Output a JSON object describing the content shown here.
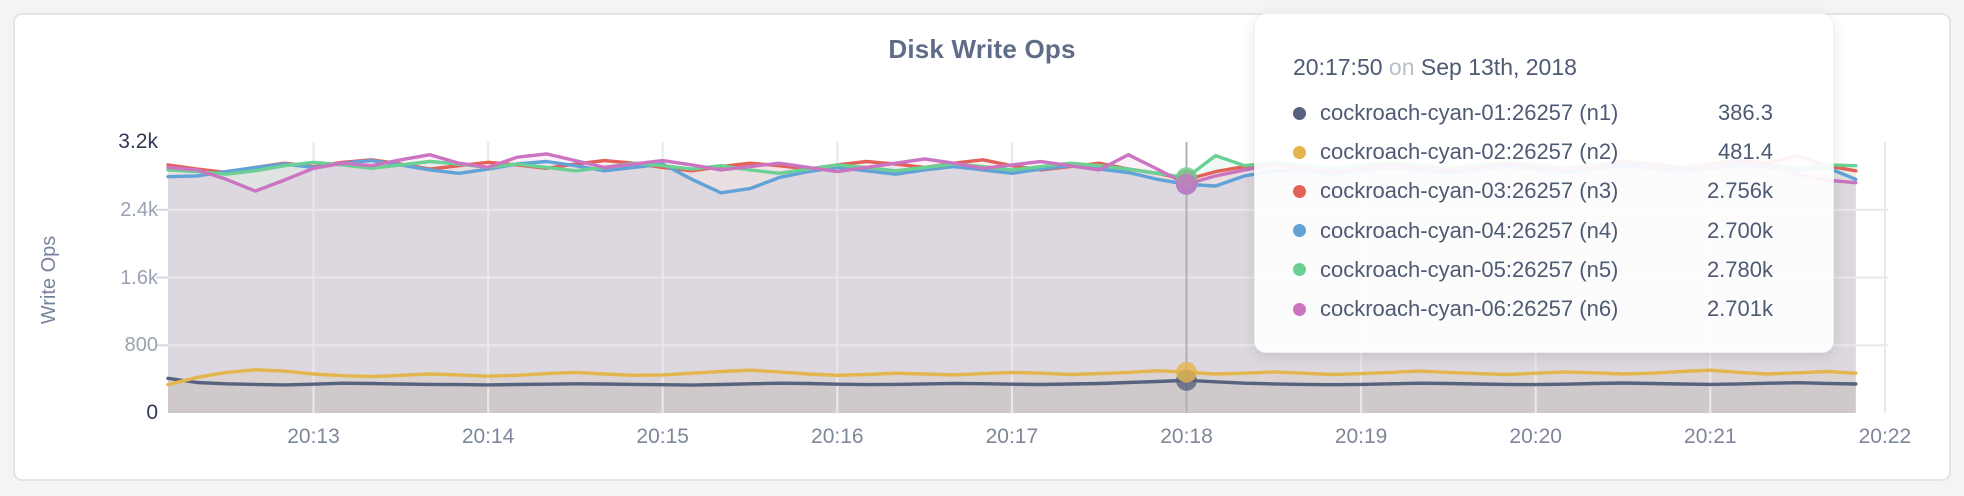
{
  "chart": {
    "title": "Disk Write Ops",
    "ylabel": "Write Ops"
  },
  "tooltip": {
    "time": "20:17:50",
    "on_word": "on",
    "date": "Sep 13th, 2018",
    "rows": [
      {
        "label": "cockroach-cyan-01:26257 (n1)",
        "value": "386.3",
        "color": "#56627e"
      },
      {
        "label": "cockroach-cyan-02:26257 (n2)",
        "value": "481.4",
        "color": "#e3b54d"
      },
      {
        "label": "cockroach-cyan-03:26257 (n3)",
        "value": "2.756k",
        "color": "#e2625a"
      },
      {
        "label": "cockroach-cyan-04:26257 (n4)",
        "value": "2.700k",
        "color": "#61a2d7"
      },
      {
        "label": "cockroach-cyan-05:26257 (n5)",
        "value": "2.780k",
        "color": "#6bd093"
      },
      {
        "label": "cockroach-cyan-06:26257 (n6)",
        "value": "2.701k",
        "color": "#cb74c2"
      }
    ]
  },
  "chart_data": {
    "type": "line",
    "title": "Disk Write Ops",
    "xlabel": "",
    "ylabel": "Write Ops",
    "ylim": [
      0,
      3200
    ],
    "grid": true,
    "x_start": "20:12:10",
    "x_step_seconds": 10,
    "x_ticks": [
      "20:13",
      "20:14",
      "20:15",
      "20:16",
      "20:17",
      "20:18",
      "20:19",
      "20:20",
      "20:21",
      "20:22"
    ],
    "y_ticks": [
      {
        "label": "0",
        "value": 0,
        "emphasis": true
      },
      {
        "label": "800",
        "value": 800,
        "emphasis": false
      },
      {
        "label": "1.6k",
        "value": 1600,
        "emphasis": false
      },
      {
        "label": "2.4k",
        "value": 2400,
        "emphasis": false
      },
      {
        "label": "3.2k",
        "value": 3200,
        "emphasis": true
      }
    ],
    "hover": {
      "index": 35,
      "time": "20:17:50",
      "date": "Sep 13th, 2018",
      "values": [
        386.3,
        481.4,
        2756,
        2700,
        2780,
        2701
      ]
    },
    "series": [
      {
        "name": "cockroach-cyan-01:26257 (n1)",
        "color": "#56627e",
        "values": [
          410,
          360,
          345,
          338,
          332,
          340,
          352,
          348,
          342,
          338,
          335,
          332,
          336,
          340,
          345,
          342,
          338,
          334,
          330,
          336,
          345,
          352,
          348,
          340,
          335,
          338,
          344,
          350,
          346,
          340,
          336,
          342,
          348,
          360,
          372,
          386.3,
          368,
          352,
          344,
          338,
          334,
          338,
          345,
          352,
          348,
          342,
          338,
          335,
          340,
          348,
          354,
          348,
          342,
          338,
          344,
          352,
          358,
          350,
          342
        ]
      },
      {
        "name": "cockroach-cyan-02:26257 (n2)",
        "color": "#e3b54d",
        "values": [
          335,
          420,
          480,
          510,
          495,
          460,
          440,
          430,
          445,
          460,
          450,
          435,
          445,
          465,
          480,
          460,
          445,
          450,
          470,
          490,
          505,
          485,
          460,
          445,
          455,
          470,
          460,
          450,
          465,
          480,
          470,
          455,
          465,
          480,
          500,
          481.4,
          460,
          470,
          485,
          470,
          455,
          465,
          480,
          495,
          480,
          465,
          455,
          470,
          485,
          475,
          460,
          470,
          490,
          505,
          480,
          460,
          475,
          490,
          470
        ]
      },
      {
        "name": "cockroach-cyan-03:26257 (n3)",
        "color": "#e2625a",
        "values": [
          2930,
          2880,
          2840,
          2900,
          2950,
          2910,
          2960,
          2990,
          2940,
          2880,
          2920,
          2960,
          2930,
          2890,
          2940,
          2980,
          2950,
          2900,
          2860,
          2910,
          2950,
          2920,
          2880,
          2930,
          2970,
          2940,
          2900,
          2950,
          2990,
          2920,
          2870,
          2910,
          2950,
          2880,
          2830,
          2756,
          2850,
          2910,
          2960,
          2920,
          2870,
          2910,
          2950,
          2920,
          2880,
          2930,
          2960,
          2930,
          2890,
          2930,
          2970,
          2940,
          2900,
          2940,
          2980,
          2950,
          3040,
          2920,
          2860
        ]
      },
      {
        "name": "cockroach-cyan-04:26257 (n4)",
        "color": "#61a2d7",
        "values": [
          2790,
          2800,
          2850,
          2900,
          2940,
          2900,
          2950,
          2980,
          2930,
          2870,
          2830,
          2880,
          2940,
          2970,
          2920,
          2860,
          2900,
          2940,
          2760,
          2600,
          2650,
          2780,
          2850,
          2900,
          2860,
          2820,
          2870,
          2910,
          2870,
          2830,
          2880,
          2920,
          2880,
          2840,
          2760,
          2700,
          2680,
          2800,
          2860,
          2860,
          2820,
          2860,
          2900,
          2870,
          2830,
          2870,
          2910,
          2880,
          2840,
          2880,
          2920,
          2890,
          2850,
          2890,
          2930,
          2900,
          2860,
          2900,
          2760
        ]
      },
      {
        "name": "cockroach-cyan-05:26257 (n5)",
        "color": "#6bd093",
        "values": [
          2870,
          2850,
          2820,
          2860,
          2920,
          2960,
          2930,
          2890,
          2930,
          2970,
          2940,
          2900,
          2940,
          2900,
          2860,
          2900,
          2950,
          2920,
          2880,
          2920,
          2870,
          2830,
          2880,
          2930,
          2900,
          2860,
          2900,
          2940,
          2910,
          2870,
          2910,
          2950,
          2920,
          2880,
          2830,
          2780,
          3040,
          2920,
          2960,
          2930,
          2890,
          2930,
          2960,
          2930,
          2890,
          2930,
          2960,
          2930,
          2890,
          2930,
          2960,
          2930,
          2890,
          2930,
          2960,
          2930,
          2890,
          2930,
          2920
        ]
      },
      {
        "name": "cockroach-cyan-06:26257 (n6)",
        "color": "#cb74c2",
        "values": [
          2900,
          2870,
          2760,
          2620,
          2750,
          2890,
          2950,
          2920,
          2990,
          3050,
          2950,
          2900,
          3020,
          3060,
          2980,
          2900,
          2940,
          2980,
          2930,
          2870,
          2910,
          2950,
          2900,
          2850,
          2900,
          2950,
          3000,
          2950,
          2890,
          2930,
          2970,
          2920,
          2870,
          3050,
          2880,
          2701,
          2800,
          2870,
          2930,
          2890,
          2850,
          2890,
          2930,
          2900,
          2860,
          2900,
          2940,
          2910,
          2870,
          2910,
          2950,
          2920,
          2880,
          2920,
          2960,
          2930,
          2820,
          2750,
          2720
        ]
      }
    ]
  }
}
